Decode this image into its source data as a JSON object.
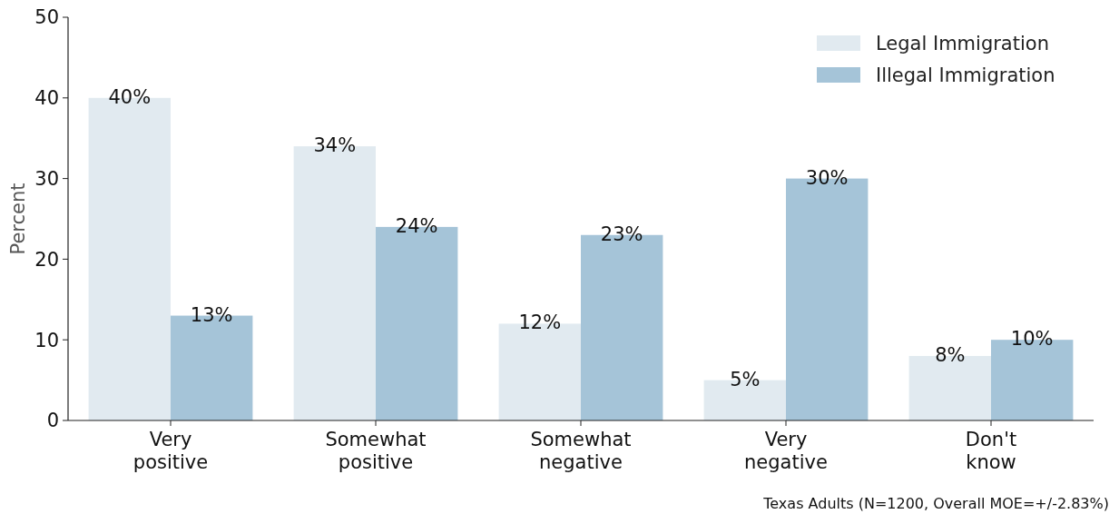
{
  "chart_data": {
    "type": "bar",
    "ylabel": "Percent",
    "categories": [
      "Very positive",
      "Somewhat positive",
      "Somewhat negative",
      "Very negative",
      "Don't know"
    ],
    "series": [
      {
        "name": "Legal Immigration",
        "color": "#e1eaf0",
        "values": [
          40,
          34,
          12,
          5,
          8
        ],
        "value_labels": [
          "40%",
          "34%",
          "12%",
          "5%",
          "8%"
        ]
      },
      {
        "name": "Illegal Immigration",
        "color": "#a5c4d8",
        "values": [
          13,
          24,
          23,
          30,
          10
        ],
        "value_labels": [
          "13%",
          "24%",
          "23%",
          "30%",
          "10%"
        ]
      }
    ],
    "ylim": [
      0,
      50
    ],
    "yticks": [
      0,
      10,
      20,
      30,
      40,
      50
    ],
    "legend": "top right",
    "grid": false,
    "annotations": [
      "Texas Adults (N=1200, Overall MOE=+/-2.83%)"
    ]
  }
}
